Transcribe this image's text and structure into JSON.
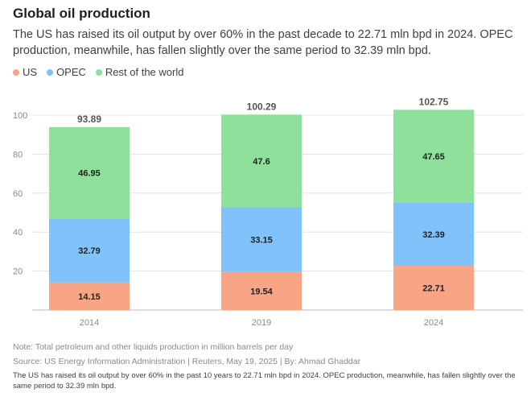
{
  "header": {
    "title": "Global oil production",
    "subtitle": "The US has raised its oil output by over 60% in the past decade to 22.71 mln bpd in 2024. OPEC production, meanwhile, has fallen slightly over the same period to 32.39 mln bpd."
  },
  "footer": {
    "note": "Note: Total petroleum and other liquids production in million barrels per day",
    "source": "Source: US Energy Information Administration | Reuters, May 19, 2025 | By: Ahmad Ghaddar",
    "caption": "The US has raised its oil output by over 60% in the past 10 years to 22.71 mln bpd in 2024. OPEC production, meanwhile, has fallen slightly over the same period to 32.39 mln bpd."
  },
  "chart_data": {
    "type": "bar",
    "stacked": true,
    "title": "Global oil production",
    "xlabel": "",
    "ylabel": "",
    "ylim": [
      0,
      105
    ],
    "yticks": [
      20,
      40,
      60,
      80,
      100
    ],
    "grid": true,
    "legend_position": "top-left",
    "categories": [
      "2014",
      "2019",
      "2024"
    ],
    "series": [
      {
        "name": "US",
        "color": "#f7a584",
        "values": [
          14.15,
          19.54,
          22.71
        ]
      },
      {
        "name": "OPEC",
        "color": "#80c2fa",
        "values": [
          32.79,
          33.15,
          32.39
        ]
      },
      {
        "name": "Rest of the world",
        "color": "#8fe09a",
        "values": [
          46.95,
          47.6,
          47.65
        ]
      }
    ],
    "totals": [
      "93.89",
      "100.29",
      "102.75"
    ]
  }
}
